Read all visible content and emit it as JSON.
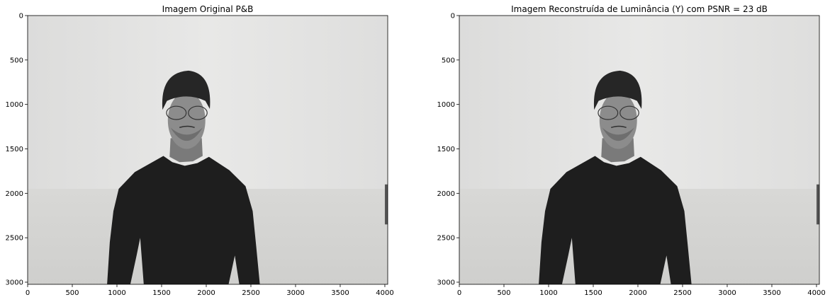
{
  "chart_data": [
    {
      "type": "image",
      "title": "Imagem Original P&B",
      "xlabel": "",
      "ylabel": "",
      "xlim": [
        0,
        4032
      ],
      "ylim": [
        3024,
        0
      ],
      "xticks": [
        0,
        500,
        1000,
        1500,
        2000,
        2500,
        3000,
        3500,
        4000
      ],
      "yticks": [
        0,
        500,
        1000,
        1500,
        2000,
        2500,
        3000
      ],
      "colormap": "gray",
      "content": "grayscale portrait photograph"
    },
    {
      "type": "image",
      "title": "Imagem Reconstruída de Luminância (Y) com PSNR = 23 dB",
      "xlabel": "",
      "ylabel": "",
      "xlim": [
        0,
        4032
      ],
      "ylim": [
        3024,
        0
      ],
      "xticks": [
        0,
        500,
        1000,
        1500,
        2000,
        2500,
        3000,
        3500,
        4000
      ],
      "yticks": [
        0,
        500,
        1000,
        1500,
        2000,
        2500,
        3000
      ],
      "colormap": "gray",
      "content": "grayscale portrait photograph"
    }
  ],
  "colors": {
    "background": "#ffffff",
    "wall": "#e4e4e2",
    "floor": "#d6d6d4",
    "shirt": "#1e1e1e",
    "skin": "#8c8c8c",
    "hair": "#262626"
  }
}
